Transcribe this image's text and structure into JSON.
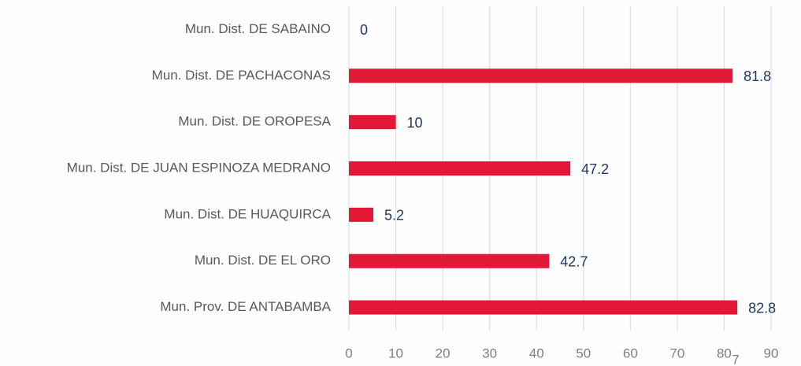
{
  "chart_data": {
    "type": "hbar",
    "categories": [
      "Mun. Dist. DE SABAINO",
      "Mun. Dist. DE PACHACONAS",
      "Mun. Dist. DE OROPESA",
      "Mun. Dist. DE JUAN ESPINOZA MEDRANO",
      "Mun. Dist. DE HUAQUIRCA",
      "Mun. Dist. DE EL ORO",
      "Mun. Prov. DE ANTABAMBA"
    ],
    "values": [
      0,
      81.8,
      10,
      47.2,
      5.2,
      42.7,
      82.8
    ],
    "color": "#e31837",
    "xlim": [
      0,
      90
    ],
    "xticks": [
      0,
      10,
      20,
      30,
      40,
      50,
      60,
      70,
      80,
      90
    ],
    "grid": true,
    "annotation": "7"
  }
}
